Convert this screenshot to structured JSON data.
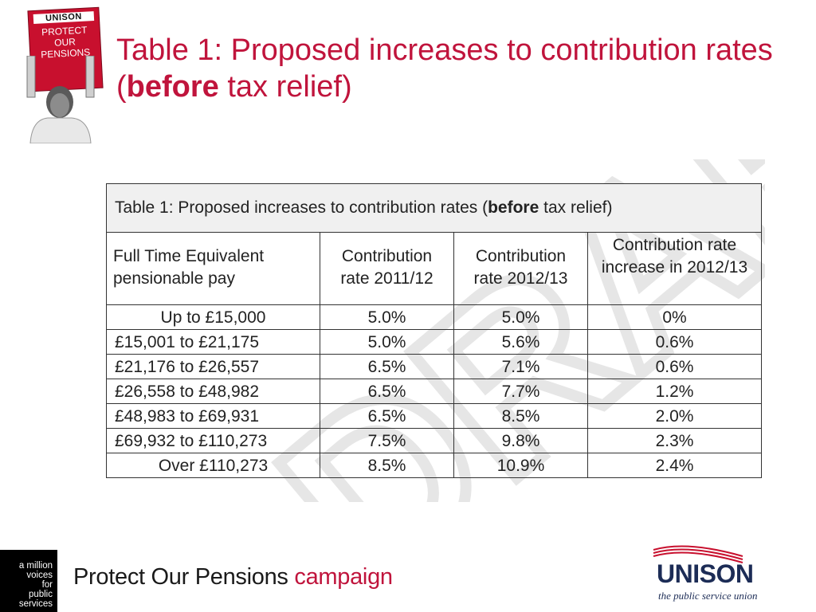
{
  "hero": {
    "placard_brand": "UNISON",
    "placard_lines": [
      "PROTECT",
      "OUR",
      "PENSIONS"
    ]
  },
  "slide_title": {
    "prefix": "Table 1: Proposed increases to contribution rates (",
    "emphasis": "before",
    "suffix": " tax relief)"
  },
  "table": {
    "caption_prefix": "Table 1: Proposed increases to contribution rates (",
    "caption_emphasis": "before",
    "caption_suffix": " tax relief)",
    "headers": [
      "Full Time Equivalent pensionable pay",
      "Contribution rate 2011/12",
      "Contribution rate 2012/13",
      "Contribution rate increase in 2012/13"
    ],
    "rows": [
      [
        "Up to £15,000",
        "5.0%",
        "5.0%",
        "0%"
      ],
      [
        "£15,001 to £21,175",
        "5.0%",
        "5.6%",
        "0.6%"
      ],
      [
        "£21,176 to £26,557",
        "6.5%",
        "7.1%",
        "0.6%"
      ],
      [
        "£26,558 to £48,982",
        "6.5%",
        "7.7%",
        "1.2%"
      ],
      [
        "£48,983 to £69,931",
        "6.5%",
        "8.5%",
        "2.0%"
      ],
      [
        "£69,932 to £110,273",
        "7.5%",
        "9.8%",
        "2.3%"
      ],
      [
        "Over £110,273",
        "8.5%",
        "10.9%",
        "2.4%"
      ]
    ],
    "watermark_text": "DRAFT"
  },
  "footer": {
    "left_logo_lines": [
      "a million",
      "voices",
      "for",
      "public",
      "services"
    ],
    "campaign_prefix": "Protect Our Pensions ",
    "campaign_accent": "campaign",
    "unison_word": "UNISON",
    "unison_tagline": "the public service union"
  },
  "colors": {
    "title_red": "#c0143c",
    "placard_red": "#c8102e",
    "unison_navy": "#1c2c56"
  }
}
